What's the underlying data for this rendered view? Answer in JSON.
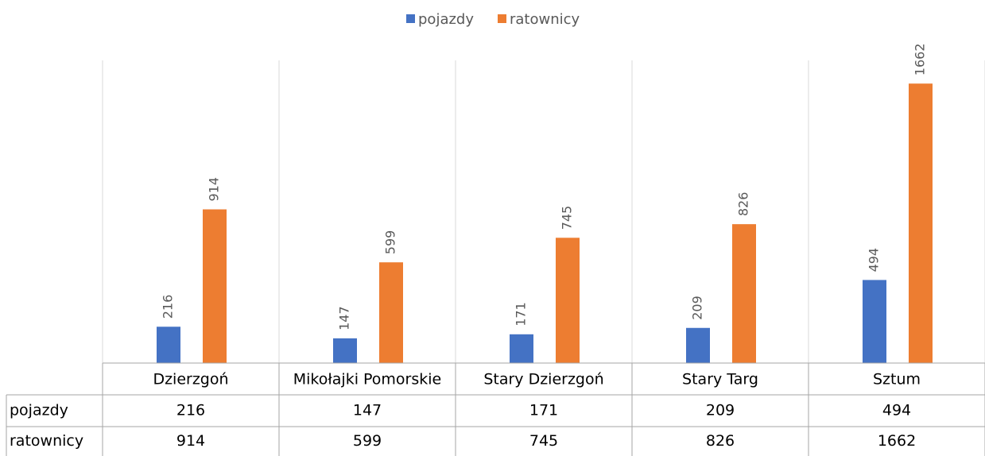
{
  "chart_data": {
    "type": "bar",
    "categories": [
      "Dzierzgoń",
      "Mikołajki Pomorskie",
      "Stary Dzierzgoń",
      "Stary Targ",
      "Sztum"
    ],
    "series": [
      {
        "name": "pojazdy",
        "color": "#4472c4",
        "values": [
          216,
          147,
          171,
          209,
          494
        ]
      },
      {
        "name": "ratownicy",
        "color": "#ed7d31",
        "values": [
          914,
          599,
          745,
          826,
          1662
        ]
      }
    ],
    "ylim": [
      0,
      1800
    ],
    "legend": "top",
    "data_table": true
  }
}
